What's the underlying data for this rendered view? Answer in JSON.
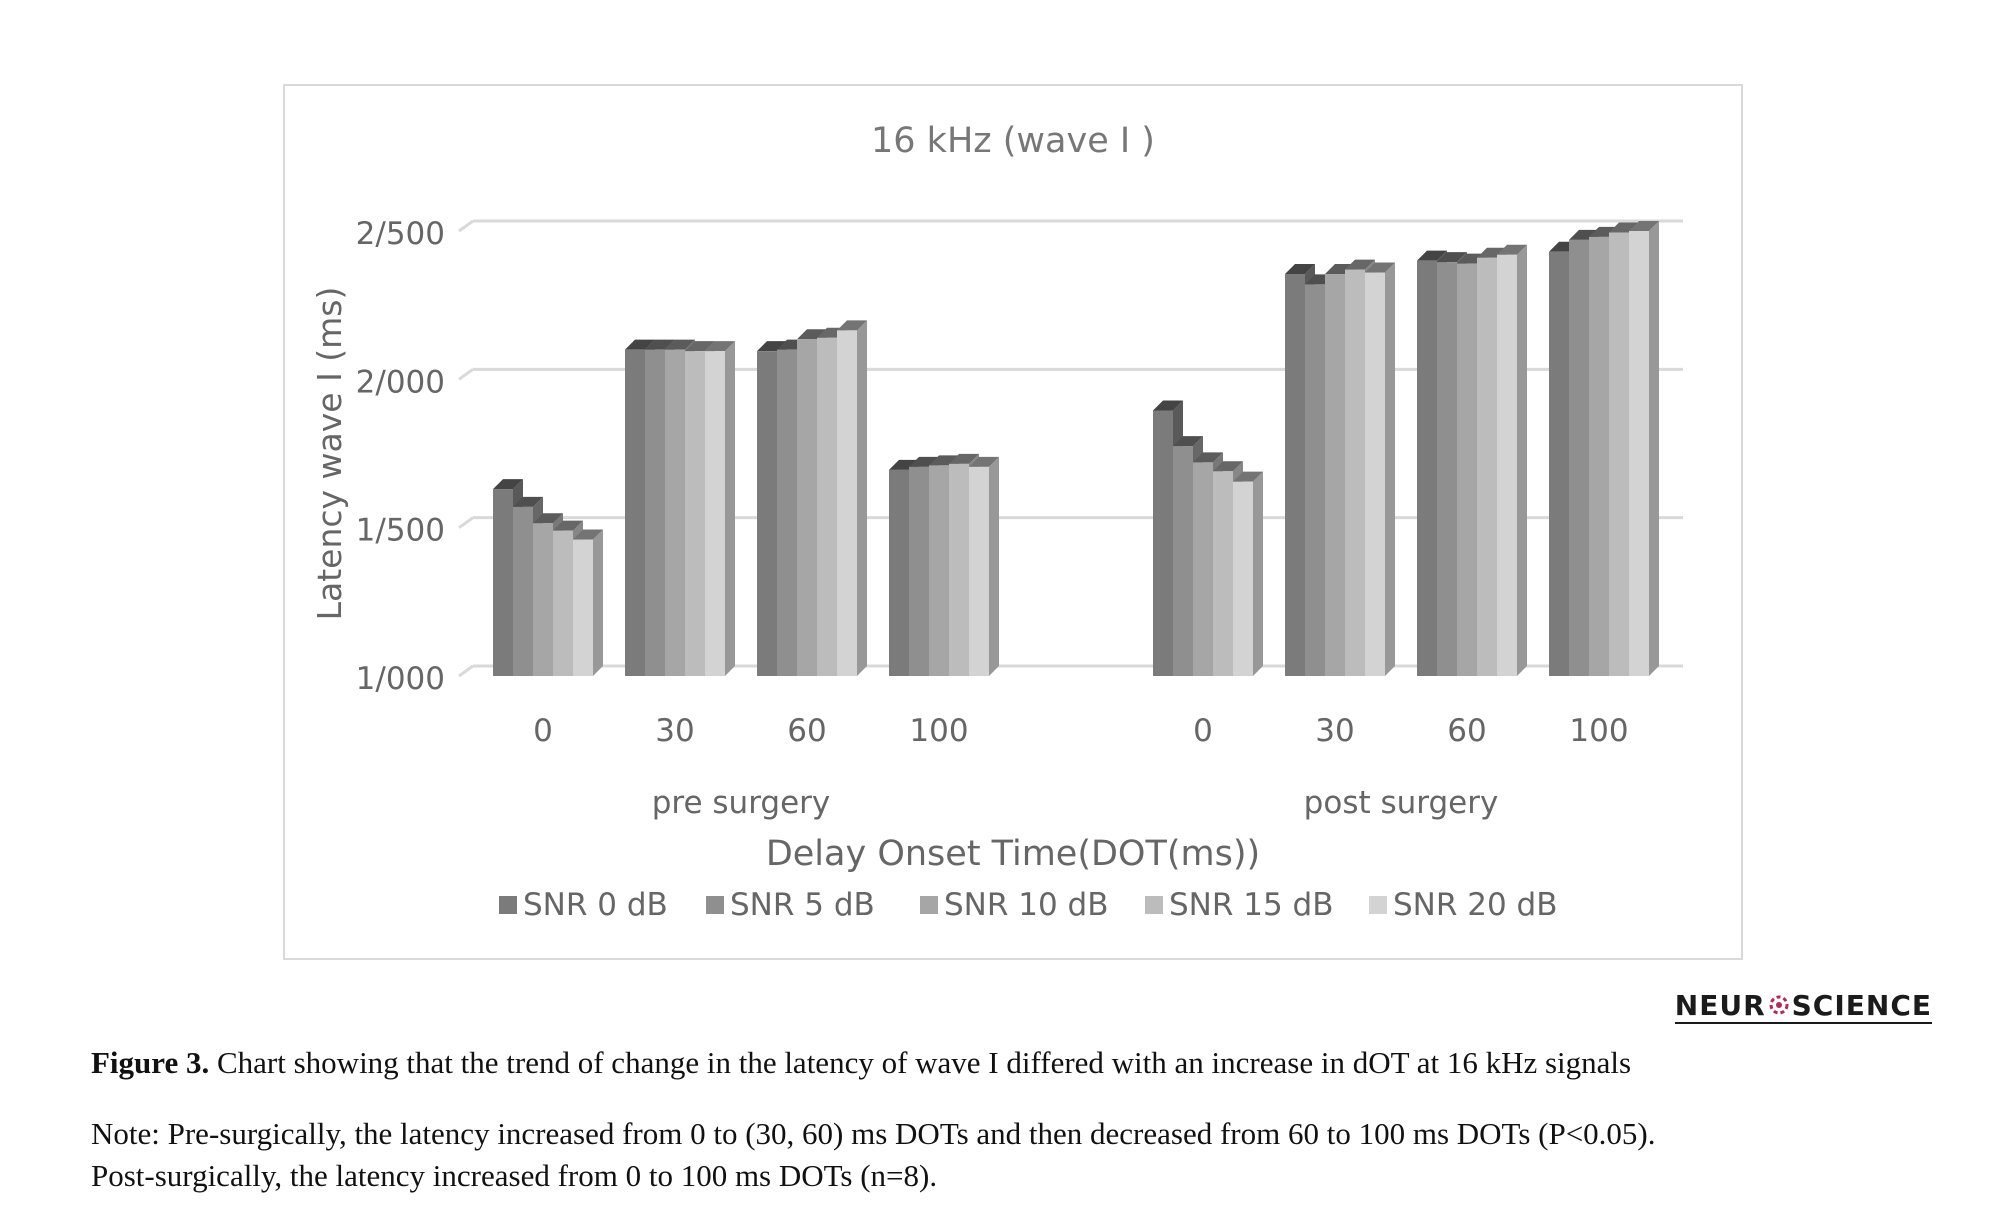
{
  "chart_data": {
    "type": "bar",
    "title": "16 kHz (wave I )",
    "ylabel": "Latency wave I (ms)",
    "xlabel": "Delay Onset Time(DOT(ms))",
    "ylim": [
      1000,
      2500
    ],
    "yticks": [
      "1/000",
      "1/500",
      "2/000",
      "2/500"
    ],
    "ytick_values": [
      1000,
      1500,
      2000,
      2500
    ],
    "grid": true,
    "legend_position": "bottom",
    "style": "3d-columns",
    "groups": [
      {
        "label": "pre surgery",
        "categories": [
          "0",
          "30",
          "60",
          "100"
        ]
      },
      {
        "label": "post surgery",
        "categories": [
          "0",
          "30",
          "60",
          "100"
        ]
      }
    ],
    "series": [
      {
        "name": "SNR 0 dB",
        "color": "#7b7b7b",
        "values": [
          1630,
          2100,
          2095,
          1695,
          1895,
          2355,
          2400,
          2430
        ]
      },
      {
        "name": "SNR 5 dB",
        "color": "#8f8f8f",
        "values": [
          1570,
          2100,
          2100,
          1705,
          1775,
          2320,
          2395,
          2470
        ]
      },
      {
        "name": "SNR 10 dB",
        "color": "#a6a6a6",
        "values": [
          1515,
          2100,
          2135,
          1710,
          1720,
          2355,
          2390,
          2480
        ]
      },
      {
        "name": "SNR 15 dB",
        "color": "#bcbcbc",
        "values": [
          1490,
          2095,
          2140,
          1715,
          1690,
          2370,
          2410,
          2495
        ]
      },
      {
        "name": "SNR 20 dB",
        "color": "#d3d3d3",
        "values": [
          1460,
          2095,
          2165,
          1705,
          1655,
          2360,
          2420,
          2500
        ]
      }
    ]
  },
  "brand": {
    "left": "NEUR",
    "right": "SCIENCE"
  },
  "caption": {
    "lead": "Figure 3.",
    "text": " Chart showing that the trend of change in the latency of wave I differed with an increase in dOT at 16 kHz signals"
  },
  "note": {
    "line1": "Note: Pre-surgically, the latency increased from 0 to (30, 60) ms DOTs and then decreased from 60 to 100 ms DOTs (P<0.05).",
    "line2": "Post-surgically, the latency increased from 0 to 100 ms DOTs (n=8)."
  }
}
